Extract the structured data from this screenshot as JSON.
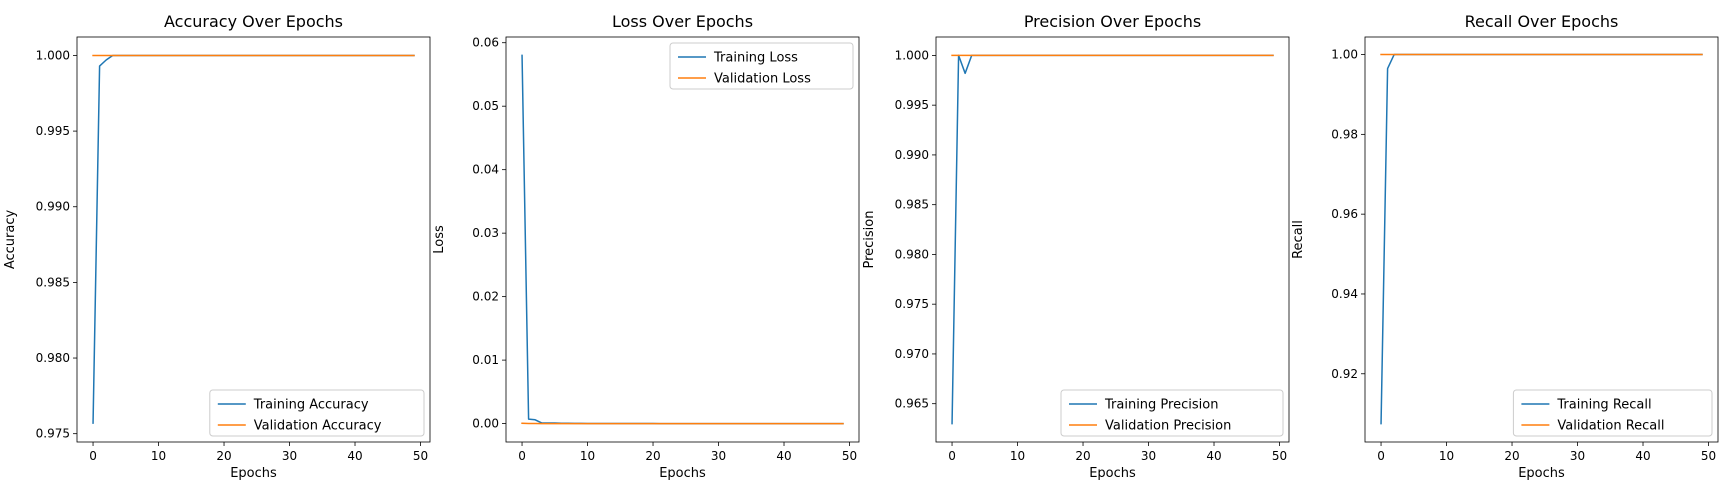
{
  "chart_data": [
    {
      "type": "line",
      "title": "Accuracy Over Epochs",
      "xlabel": "Epochs",
      "ylabel": "Accuracy",
      "xlim": [
        -2.45,
        51.45
      ],
      "ylim": [
        0.97445,
        1.00122
      ],
      "xticks": [
        0,
        10,
        20,
        30,
        40,
        50
      ],
      "yticks": [
        0.975,
        0.98,
        0.985,
        0.99,
        0.995,
        1.0
      ],
      "ytick_labels": [
        "0.975",
        "0.980",
        "0.985",
        "0.990",
        "0.995",
        "1.000"
      ],
      "legend_position": "lower-right",
      "grid": false,
      "series": [
        {
          "name": "Training Accuracy",
          "color": "#1f77b4",
          "x": [
            0,
            1,
            2,
            3,
            4,
            5,
            6,
            7,
            8,
            9,
            10,
            11,
            12,
            13,
            14,
            15,
            16,
            17,
            18,
            19,
            20,
            21,
            22,
            23,
            24,
            25,
            26,
            27,
            28,
            29,
            30,
            31,
            32,
            33,
            34,
            35,
            36,
            37,
            38,
            39,
            40,
            41,
            42,
            43,
            44,
            45,
            46,
            47,
            48,
            49
          ],
          "y": [
            0.9757,
            0.9993,
            0.9997,
            1,
            1,
            1,
            1,
            1,
            1,
            1,
            1,
            1,
            1,
            1,
            1,
            1,
            1,
            1,
            1,
            1,
            1,
            1,
            1,
            1,
            1,
            1,
            1,
            1,
            1,
            1,
            1,
            1,
            1,
            1,
            1,
            1,
            1,
            1,
            1,
            1,
            1,
            1,
            1,
            1,
            1,
            1,
            1,
            1,
            1,
            1
          ]
        },
        {
          "name": "Validation Accuracy",
          "color": "#ff7f0e",
          "x": [
            0,
            1,
            2,
            3,
            4,
            5,
            6,
            7,
            8,
            9,
            10,
            11,
            12,
            13,
            14,
            15,
            16,
            17,
            18,
            19,
            20,
            21,
            22,
            23,
            24,
            25,
            26,
            27,
            28,
            29,
            30,
            31,
            32,
            33,
            34,
            35,
            36,
            37,
            38,
            39,
            40,
            41,
            42,
            43,
            44,
            45,
            46,
            47,
            48,
            49
          ],
          "y": [
            1,
            1,
            1,
            1,
            1,
            1,
            1,
            1,
            1,
            1,
            1,
            1,
            1,
            1,
            1,
            1,
            1,
            1,
            1,
            1,
            1,
            1,
            1,
            1,
            1,
            1,
            1,
            1,
            1,
            1,
            1,
            1,
            1,
            1,
            1,
            1,
            1,
            1,
            1,
            1,
            1,
            1,
            1,
            1,
            1,
            1,
            1,
            1,
            1,
            1
          ]
        }
      ]
    },
    {
      "type": "line",
      "title": "Loss Over Epochs",
      "xlabel": "Epochs",
      "ylabel": "Loss",
      "xlim": [
        -2.45,
        51.45
      ],
      "ylim": [
        -0.0029,
        0.0609
      ],
      "xticks": [
        0,
        10,
        20,
        30,
        40,
        50
      ],
      "yticks": [
        0.0,
        0.01,
        0.02,
        0.03,
        0.04,
        0.05,
        0.06
      ],
      "ytick_labels": [
        "0.00",
        "0.01",
        "0.02",
        "0.03",
        "0.04",
        "0.05",
        "0.06"
      ],
      "legend_position": "upper-right",
      "grid": false,
      "series": [
        {
          "name": "Training Loss",
          "color": "#1f77b4",
          "x": [
            0,
            1,
            2,
            3,
            4,
            5,
            6,
            7,
            8,
            9,
            10,
            11,
            12,
            13,
            14,
            15,
            16,
            17,
            18,
            19,
            20,
            21,
            22,
            23,
            24,
            25,
            26,
            27,
            28,
            29,
            30,
            31,
            32,
            33,
            34,
            35,
            36,
            37,
            38,
            39,
            40,
            41,
            42,
            43,
            44,
            45,
            46,
            47,
            48,
            49
          ],
          "y": [
            0.058,
            0.0007,
            0.0006,
            0.0001,
            0.0001,
            0.0001,
            5e-05,
            5e-05,
            3e-05,
            3e-05,
            2e-05,
            2e-05,
            2e-05,
            1e-05,
            1e-05,
            1e-05,
            1e-05,
            1e-05,
            1e-05,
            1e-05,
            1e-05,
            0,
            0,
            0,
            0,
            0,
            0,
            0,
            0,
            0,
            0,
            0,
            0,
            0,
            0,
            0,
            0,
            0,
            0,
            0,
            0,
            0,
            0,
            0,
            0,
            0,
            0,
            0,
            0,
            0
          ]
        },
        {
          "name": "Validation Loss",
          "color": "#ff7f0e",
          "x": [
            0,
            1,
            2,
            3,
            4,
            5,
            6,
            7,
            8,
            9,
            10,
            11,
            12,
            13,
            14,
            15,
            16,
            17,
            18,
            19,
            20,
            21,
            22,
            23,
            24,
            25,
            26,
            27,
            28,
            29,
            30,
            31,
            32,
            33,
            34,
            35,
            36,
            37,
            38,
            39,
            40,
            41,
            42,
            43,
            44,
            45,
            46,
            47,
            48,
            49
          ],
          "y": [
            5e-05,
            2e-05,
            1e-05,
            0,
            0,
            0,
            0,
            0,
            0,
            0,
            0,
            0,
            0,
            0,
            0,
            0,
            0,
            0,
            0,
            0,
            0,
            0,
            0,
            0,
            0,
            0,
            0,
            0,
            0,
            0,
            0,
            0,
            0,
            0,
            0,
            0,
            0,
            0,
            0,
            0,
            0,
            0,
            0,
            0,
            0,
            0,
            0,
            0,
            0,
            0
          ]
        }
      ]
    },
    {
      "type": "line",
      "title": "Precision Over Epochs",
      "xlabel": "Epochs",
      "ylabel": "Precision",
      "xlim": [
        -2.45,
        51.45
      ],
      "ylim": [
        0.96115,
        1.00185
      ],
      "xticks": [
        0,
        10,
        20,
        30,
        40,
        50
      ],
      "yticks": [
        0.965,
        0.97,
        0.975,
        0.98,
        0.985,
        0.99,
        0.995,
        1.0
      ],
      "ytick_labels": [
        "0.965",
        "0.970",
        "0.975",
        "0.980",
        "0.985",
        "0.990",
        "0.995",
        "1.000"
      ],
      "legend_position": "lower-right",
      "grid": false,
      "series": [
        {
          "name": "Training Precision",
          "color": "#1f77b4",
          "x": [
            0,
            1,
            2,
            3,
            4,
            5,
            6,
            7,
            8,
            9,
            10,
            11,
            12,
            13,
            14,
            15,
            16,
            17,
            18,
            19,
            20,
            21,
            22,
            23,
            24,
            25,
            26,
            27,
            28,
            29,
            30,
            31,
            32,
            33,
            34,
            35,
            36,
            37,
            38,
            39,
            40,
            41,
            42,
            43,
            44,
            45,
            46,
            47,
            48,
            49
          ],
          "y": [
            0.963,
            1,
            0.9982,
            1,
            1,
            1,
            1,
            1,
            1,
            1,
            1,
            1,
            1,
            1,
            1,
            1,
            1,
            1,
            1,
            1,
            1,
            1,
            1,
            1,
            1,
            1,
            1,
            1,
            1,
            1,
            1,
            1,
            1,
            1,
            1,
            1,
            1,
            1,
            1,
            1,
            1,
            1,
            1,
            1,
            1,
            1,
            1,
            1,
            1,
            1
          ]
        },
        {
          "name": "Validation Precision",
          "color": "#ff7f0e",
          "x": [
            0,
            1,
            2,
            3,
            4,
            5,
            6,
            7,
            8,
            9,
            10,
            11,
            12,
            13,
            14,
            15,
            16,
            17,
            18,
            19,
            20,
            21,
            22,
            23,
            24,
            25,
            26,
            27,
            28,
            29,
            30,
            31,
            32,
            33,
            34,
            35,
            36,
            37,
            38,
            39,
            40,
            41,
            42,
            43,
            44,
            45,
            46,
            47,
            48,
            49
          ],
          "y": [
            1,
            1,
            1,
            1,
            1,
            1,
            1,
            1,
            1,
            1,
            1,
            1,
            1,
            1,
            1,
            1,
            1,
            1,
            1,
            1,
            1,
            1,
            1,
            1,
            1,
            1,
            1,
            1,
            1,
            1,
            1,
            1,
            1,
            1,
            1,
            1,
            1,
            1,
            1,
            1,
            1,
            1,
            1,
            1,
            1,
            1,
            1,
            1,
            1,
            1
          ]
        }
      ]
    },
    {
      "type": "line",
      "title": "Recall Over Epochs",
      "xlabel": "Epochs",
      "ylabel": "Recall",
      "xlim": [
        -2.45,
        51.45
      ],
      "ylim": [
        0.9029,
        1.0044
      ],
      "xticks": [
        0,
        10,
        20,
        30,
        40,
        50
      ],
      "yticks": [
        0.92,
        0.94,
        0.96,
        0.98,
        1.0
      ],
      "ytick_labels": [
        "0.92",
        "0.94",
        "0.96",
        "0.98",
        "1.00"
      ],
      "legend_position": "lower-right",
      "grid": false,
      "series": [
        {
          "name": "Training Recall",
          "color": "#1f77b4",
          "x": [
            0,
            1,
            2,
            3,
            4,
            5,
            6,
            7,
            8,
            9,
            10,
            11,
            12,
            13,
            14,
            15,
            16,
            17,
            18,
            19,
            20,
            21,
            22,
            23,
            24,
            25,
            26,
            27,
            28,
            29,
            30,
            31,
            32,
            33,
            34,
            35,
            36,
            37,
            38,
            39,
            40,
            41,
            42,
            43,
            44,
            45,
            46,
            47,
            48,
            49
          ],
          "y": [
            0.9075,
            0.9965,
            1,
            1,
            1,
            1,
            1,
            1,
            1,
            1,
            1,
            1,
            1,
            1,
            1,
            1,
            1,
            1,
            1,
            1,
            1,
            1,
            1,
            1,
            1,
            1,
            1,
            1,
            1,
            1,
            1,
            1,
            1,
            1,
            1,
            1,
            1,
            1,
            1,
            1,
            1,
            1,
            1,
            1,
            1,
            1,
            1,
            1,
            1,
            1
          ]
        },
        {
          "name": "Validation Recall",
          "color": "#ff7f0e",
          "x": [
            0,
            1,
            2,
            3,
            4,
            5,
            6,
            7,
            8,
            9,
            10,
            11,
            12,
            13,
            14,
            15,
            16,
            17,
            18,
            19,
            20,
            21,
            22,
            23,
            24,
            25,
            26,
            27,
            28,
            29,
            30,
            31,
            32,
            33,
            34,
            35,
            36,
            37,
            38,
            39,
            40,
            41,
            42,
            43,
            44,
            45,
            46,
            47,
            48,
            49
          ],
          "y": [
            1,
            1,
            1,
            1,
            1,
            1,
            1,
            1,
            1,
            1,
            1,
            1,
            1,
            1,
            1,
            1,
            1,
            1,
            1,
            1,
            1,
            1,
            1,
            1,
            1,
            1,
            1,
            1,
            1,
            1,
            1,
            1,
            1,
            1,
            1,
            1,
            1,
            1,
            1,
            1,
            1,
            1,
            1,
            1,
            1,
            1,
            1,
            1,
            1,
            1
          ]
        }
      ]
    }
  ]
}
